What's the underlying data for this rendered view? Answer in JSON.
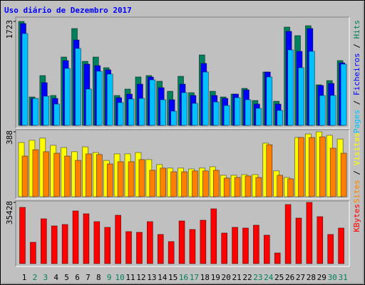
{
  "chart_data": {
    "type": "bar",
    "title": "Uso diário de Dezembro 2017",
    "categories": [
      "1",
      "2",
      "3",
      "4",
      "5",
      "6",
      "7",
      "8",
      "9",
      "10",
      "11",
      "12",
      "13",
      "14",
      "15",
      "16",
      "17",
      "18",
      "19",
      "20",
      "21",
      "22",
      "23",
      "24",
      "25",
      "26",
      "27",
      "28",
      "29",
      "30",
      "31"
    ],
    "category_colors": [
      "#000000",
      "#00805c",
      "#00805c",
      "#000000",
      "#000000",
      "#000000",
      "#000000",
      "#000000",
      "#00805c",
      "#00805c",
      "#000000",
      "#000000",
      "#000000",
      "#000000",
      "#000000",
      "#00805c",
      "#00805c",
      "#000000",
      "#000000",
      "#000000",
      "#000000",
      "#000000",
      "#00805c",
      "#00805c",
      "#000000",
      "#000000",
      "#000000",
      "#000000",
      "#000000",
      "#00805c",
      "#00805c"
    ],
    "legend_separator": " / ",
    "panels": [
      {
        "ylim": [
          0,
          1723
        ],
        "yticks": [
          1723
        ],
        "series": [
          {
            "name": "Pages",
            "color": "#00c0ff",
            "values": [
              1522,
              448,
              484,
              354,
              944,
              1275,
              602,
              897,
              850,
              378,
              437,
              448,
              755,
              425,
              236,
              543,
              366,
              885,
              389,
              330,
              460,
              425,
              283,
              802,
              248,
              1251,
              956,
              1227,
              496,
              496,
              1015
            ]
          },
          {
            "name": "Ficheiros",
            "color": "#0000ff",
            "values": [
              1688,
              448,
              708,
              448,
              1074,
              1416,
              1015,
              991,
              920,
              460,
              519,
              684,
              802,
              625,
              425,
              684,
              496,
              1027,
              496,
              448,
              519,
              590,
              354,
              885,
              354,
              1558,
              1227,
              1605,
              661,
              696,
              1038
            ]
          },
          {
            "name": "Hits",
            "color": "#00805c",
            "values": [
              1723,
              472,
              826,
              496,
              1133,
              1605,
              1062,
              1133,
              956,
              496,
              602,
              803,
              826,
              732,
              566,
              814,
              543,
              1168,
              566,
              472,
              519,
              614,
              413,
              885,
              401,
              1629,
              1487,
              1652,
              673,
              743,
              1074
            ]
          }
        ]
      },
      {
        "ylim": [
          0,
          388
        ],
        "yticks": [
          388
        ],
        "series": [
          {
            "name": "Sites",
            "color": "#ff8000",
            "values": [
              243,
              281,
              269,
              260,
              243,
              217,
              256,
              252,
              196,
              209,
              209,
              222,
              158,
              171,
              149,
              149,
              154,
              154,
              158,
              111,
              115,
              124,
              115,
              311,
              128,
              107,
              354,
              354,
              358,
              290,
              260
            ]
          },
          {
            "name": "Visitas",
            "color": "#ffff00",
            "values": [
              324,
              337,
              350,
              307,
              294,
              269,
              298,
              264,
              217,
              256,
              256,
              264,
              222,
              192,
              171,
              171,
              166,
              171,
              179,
              128,
              128,
              132,
              132,
              320,
              154,
              115,
              354,
              375,
              388,
              367,
              345
            ]
          }
        ]
      },
      {
        "ylim": [
          0,
          35428
        ],
        "yticks": [
          35428
        ],
        "series": [
          {
            "name": "KBytes",
            "color": "#ff0000",
            "values": [
              32548,
              12360,
              25956,
              21836,
              22660,
              30488,
              28840,
              24308,
              21012,
              28016,
              18540,
              18128,
              24308,
              16892,
              12772,
              24720,
              19776,
              25132,
              31724,
              17716,
              21012,
              20600,
              22248,
              16480,
              6180,
              34196,
              26368,
              35428,
              27192,
              16892,
              20600
            ]
          }
        ]
      }
    ]
  }
}
